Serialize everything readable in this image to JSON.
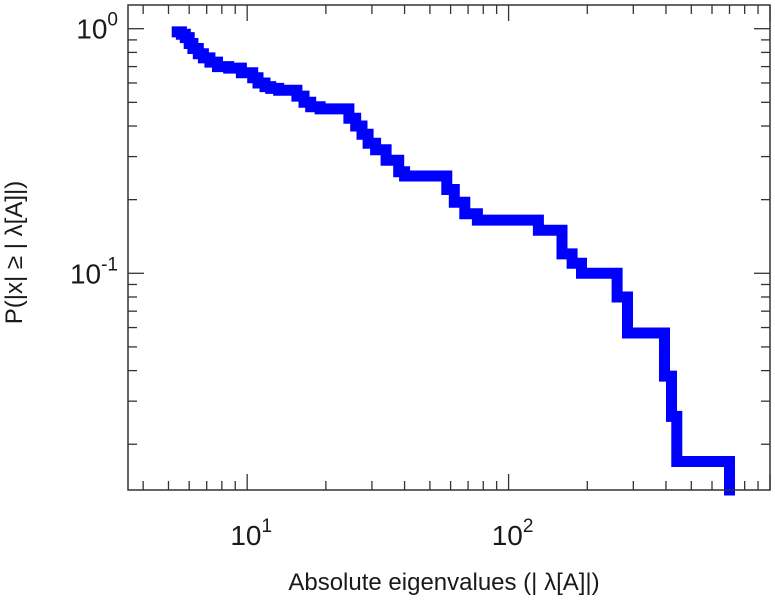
{
  "chart_data": {
    "type": "line",
    "title": "",
    "xlabel": "Absolute eigenvalues (|     λ[A]|)",
    "ylabel": "P(|x|  ≥ | λ[A]|)",
    "x_scale": "log",
    "y_scale": "log",
    "xlim": [
      3.5,
      1000
    ],
    "ylim": [
      0.013,
      1.25
    ],
    "grid": false,
    "x_ticks": [
      {
        "value": 10,
        "base": "10",
        "exp": "1"
      },
      {
        "value": 100,
        "base": "10",
        "exp": "2"
      }
    ],
    "y_ticks": [
      {
        "value": 1,
        "base": "10",
        "exp": "0"
      },
      {
        "value": 0.1,
        "base": "10",
        "exp": "-1"
      }
    ],
    "series": [
      {
        "color": "#0000ff",
        "step": true,
        "x": [
          5.4,
          5.6,
          5.8,
          6.0,
          6.2,
          6.5,
          6.8,
          7.2,
          7.7,
          8.5,
          9.5,
          10.5,
          11.0,
          11.7,
          12.3,
          13.2,
          15.5,
          16.5,
          17.5,
          19.0,
          24.5,
          26.0,
          27.5,
          29.0,
          31.0,
          34.0,
          38.0,
          40.0,
          42.0,
          58.0,
          62.0,
          68.0,
          76.0,
          80.0,
          130.0,
          160.0,
          175.0,
          190.0,
          210.0,
          260.0,
          285.0,
          350.0,
          395.0,
          420.0,
          440.0,
          700.0
        ],
        "y": [
          0.97,
          0.95,
          0.92,
          0.87,
          0.83,
          0.79,
          0.76,
          0.73,
          0.7,
          0.69,
          0.66,
          0.63,
          0.6,
          0.58,
          0.57,
          0.56,
          0.53,
          0.5,
          0.48,
          0.47,
          0.43,
          0.4,
          0.37,
          0.34,
          0.32,
          0.29,
          0.26,
          0.25,
          0.25,
          0.22,
          0.195,
          0.175,
          0.165,
          0.165,
          0.15,
          0.12,
          0.11,
          0.1,
          0.1,
          0.08,
          0.057,
          0.057,
          0.038,
          0.026,
          0.017,
          0.013
        ]
      }
    ]
  }
}
